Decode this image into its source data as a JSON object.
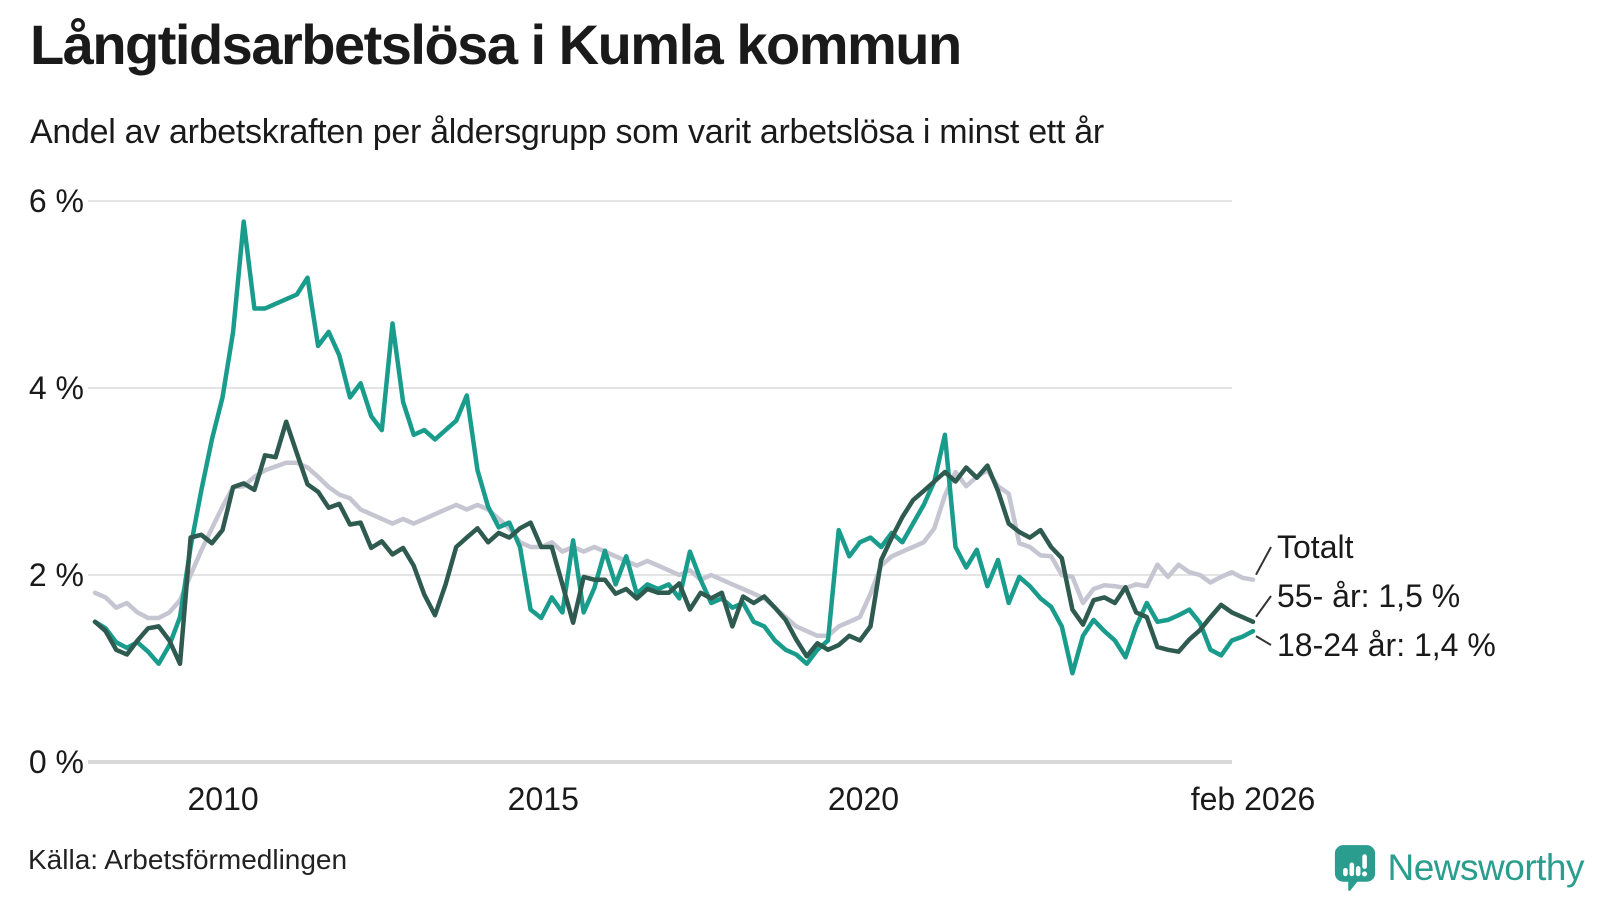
{
  "header": {
    "title": "Långtidsarbetslösa i Kumla kommun",
    "subtitle": "Andel av arbetskraften per åldersgrupp som varit arbetslösa i minst ett år"
  },
  "footer": {
    "source": "Källa: Arbetsförmedlingen",
    "logo_text": "Newsworthy"
  },
  "colors": {
    "totalt_line": "#c6c5d2",
    "age_55_line": "#2f5a4f",
    "age_18_24_line": "#1a9c8c",
    "grid": "#e4e4e4",
    "axis": "#d8d8d8",
    "brand_teal": "#2a9d8f",
    "text": "#1a1a1a"
  },
  "chart_data": {
    "type": "line",
    "title": "Långtidsarbetslösa i Kumla kommun",
    "subtitle": "Andel av arbetskraften per åldersgrupp som varit arbetslösa i minst ett år",
    "unit": "%",
    "grid": "horizontal",
    "legend_position": "end-of-line-labels-right",
    "x_start": 2008.0,
    "x_end": 2026.083,
    "x_axis": {
      "range": [
        2008.0,
        2026.083
      ],
      "ticks": [
        {
          "x": 2010,
          "label": "2010"
        },
        {
          "x": 2015,
          "label": "2015"
        },
        {
          "x": 2020,
          "label": "2020"
        },
        {
          "x": 2026.083,
          "label": "feb 2026"
        }
      ]
    },
    "y_axis": {
      "range": [
        0,
        6
      ],
      "ticks": [
        {
          "value": 0,
          "label": "0 %"
        },
        {
          "value": 2,
          "label": "2 %"
        },
        {
          "value": 4,
          "label": "4 %"
        },
        {
          "value": 6,
          "label": "6 %"
        }
      ]
    },
    "series": [
      {
        "name": "Totalt",
        "color": "#c6c5d2",
        "stroke_width": 4.5,
        "values": [
          1.81,
          1.76,
          1.65,
          1.7,
          1.6,
          1.54,
          1.54,
          1.6,
          1.73,
          2.0,
          2.26,
          2.5,
          2.73,
          2.94,
          2.95,
          3.05,
          3.12,
          3.16,
          3.2,
          3.2,
          3.15,
          3.05,
          2.94,
          2.86,
          2.82,
          2.7,
          2.65,
          2.6,
          2.55,
          2.6,
          2.55,
          2.6,
          2.65,
          2.7,
          2.75,
          2.7,
          2.75,
          2.7,
          2.6,
          2.5,
          2.35,
          2.3,
          2.3,
          2.35,
          2.25,
          2.3,
          2.25,
          2.3,
          2.25,
          2.2,
          2.15,
          2.1,
          2.15,
          2.1,
          2.05,
          2.0,
          2.05,
          1.95,
          2.0,
          1.95,
          1.9,
          1.85,
          1.8,
          1.75,
          1.65,
          1.55,
          1.45,
          1.4,
          1.35,
          1.35,
          1.45,
          1.5,
          1.55,
          1.8,
          2.1,
          2.2,
          2.25,
          2.3,
          2.35,
          2.5,
          2.85,
          3.1,
          2.95,
          3.05,
          3.12,
          2.95,
          2.87,
          2.34,
          2.3,
          2.21,
          2.2,
          2.0,
          1.98,
          1.7,
          1.85,
          1.89,
          1.88,
          1.86,
          1.9,
          1.88,
          2.11,
          1.98,
          2.11,
          2.03,
          2.0,
          1.92,
          1.98,
          2.03,
          1.97,
          1.95
        ]
      },
      {
        "name": "18-24 år",
        "color": "#1a9c8c",
        "stroke_width": 4.5,
        "end_value": 1.4,
        "values": [
          1.5,
          1.43,
          1.28,
          1.22,
          1.28,
          1.18,
          1.05,
          1.25,
          1.55,
          2.3,
          2.9,
          3.45,
          3.9,
          4.6,
          5.78,
          4.85,
          4.85,
          4.9,
          4.95,
          5.0,
          5.18,
          4.45,
          4.6,
          4.35,
          3.9,
          4.05,
          3.7,
          3.55,
          4.69,
          3.85,
          3.5,
          3.55,
          3.45,
          3.55,
          3.65,
          3.92,
          3.12,
          2.73,
          2.51,
          2.56,
          2.3,
          1.63,
          1.54,
          1.76,
          1.6,
          2.37,
          1.6,
          1.86,
          2.26,
          1.9,
          2.2,
          1.8,
          1.9,
          1.85,
          1.9,
          1.75,
          2.25,
          1.95,
          1.7,
          1.75,
          1.65,
          1.7,
          1.5,
          1.45,
          1.3,
          1.2,
          1.15,
          1.05,
          1.2,
          1.3,
          2.48,
          2.2,
          2.35,
          2.4,
          2.3,
          2.45,
          2.35,
          2.55,
          2.75,
          3.0,
          3.5,
          2.3,
          2.08,
          2.27,
          1.88,
          2.16,
          1.7,
          1.98,
          1.88,
          1.75,
          1.66,
          1.45,
          0.95,
          1.35,
          1.52,
          1.4,
          1.3,
          1.12,
          1.45,
          1.7,
          1.5,
          1.52,
          1.57,
          1.63,
          1.49,
          1.2,
          1.14,
          1.3,
          1.34,
          1.4
        ]
      },
      {
        "name": "55- år",
        "color": "#2f5a4f",
        "stroke_width": 4.5,
        "end_value": 1.5,
        "values": [
          1.5,
          1.4,
          1.2,
          1.15,
          1.3,
          1.43,
          1.45,
          1.3,
          1.05,
          2.4,
          2.43,
          2.34,
          2.48,
          2.94,
          2.98,
          2.91,
          3.28,
          3.26,
          3.64,
          3.3,
          2.97,
          2.89,
          2.72,
          2.76,
          2.54,
          2.56,
          2.29,
          2.36,
          2.22,
          2.29,
          2.1,
          1.79,
          1.57,
          1.9,
          2.3,
          2.4,
          2.5,
          2.35,
          2.45,
          2.4,
          2.5,
          2.56,
          2.3,
          2.3,
          1.9,
          1.49,
          1.98,
          1.95,
          1.95,
          1.8,
          1.85,
          1.75,
          1.85,
          1.81,
          1.81,
          1.91,
          1.63,
          1.81,
          1.75,
          1.81,
          1.45,
          1.77,
          1.7,
          1.77,
          1.65,
          1.52,
          1.31,
          1.13,
          1.27,
          1.2,
          1.25,
          1.35,
          1.3,
          1.45,
          2.16,
          2.4,
          2.62,
          2.8,
          2.9,
          3.0,
          3.1,
          3.0,
          3.15,
          3.04,
          3.17,
          2.9,
          2.55,
          2.46,
          2.4,
          2.48,
          2.3,
          2.18,
          1.63,
          1.47,
          1.73,
          1.76,
          1.7,
          1.87,
          1.6,
          1.55,
          1.23,
          1.2,
          1.18,
          1.31,
          1.41,
          1.55,
          1.68,
          1.6,
          1.55,
          1.5
        ]
      }
    ],
    "legend": [
      {
        "series": "Totalt",
        "label": "Totalt"
      },
      {
        "series": "55- år",
        "label": "55- år: 1,5 %"
      },
      {
        "series": "18-24 år",
        "label": "18-24 år: 1,4 %"
      }
    ]
  }
}
